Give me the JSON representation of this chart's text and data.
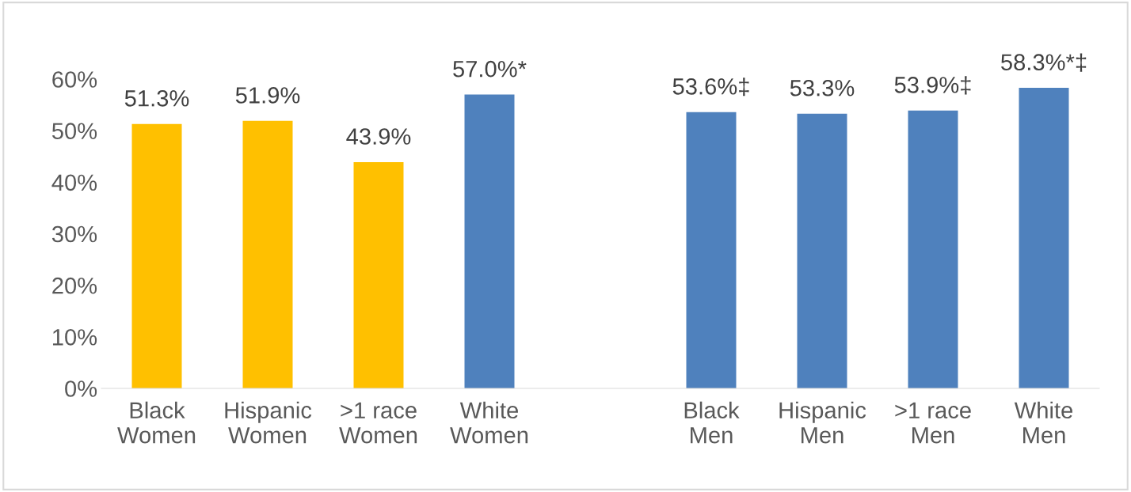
{
  "chart_data": {
    "type": "bar",
    "categories": [
      "Black\nWomen",
      "Hispanic\nWomen",
      ">1 race\nWomen",
      "White\nWomen",
      null,
      "Black\nMen",
      "Hispanic\nMen",
      ">1 race\nMen",
      "White\nMen"
    ],
    "values": [
      51.3,
      51.9,
      43.9,
      57.0,
      null,
      53.6,
      53.3,
      53.9,
      58.3
    ],
    "colors": [
      "#ffc000",
      "#ffc000",
      "#ffc000",
      "#4f81bd",
      "#4f81bd",
      "#4f81bd",
      "#4f81bd",
      "#4f81bd",
      "#4f81bd"
    ],
    "value_labels": [
      "51.3%",
      "51.9%",
      "43.9%",
      "57.0%*",
      null,
      "53.6%‡",
      "53.3%",
      "53.9%‡",
      "58.3%*‡"
    ],
    "ylim": [
      0,
      60
    ],
    "yticks": [
      {
        "value": 0,
        "label": "0%"
      },
      {
        "value": 10,
        "label": "10%"
      },
      {
        "value": 20,
        "label": "20%"
      },
      {
        "value": 30,
        "label": "30%"
      },
      {
        "value": 40,
        "label": "40%"
      },
      {
        "value": 50,
        "label": "50%"
      },
      {
        "value": 60,
        "label": "60%"
      }
    ],
    "grid": false,
    "legend": false
  }
}
